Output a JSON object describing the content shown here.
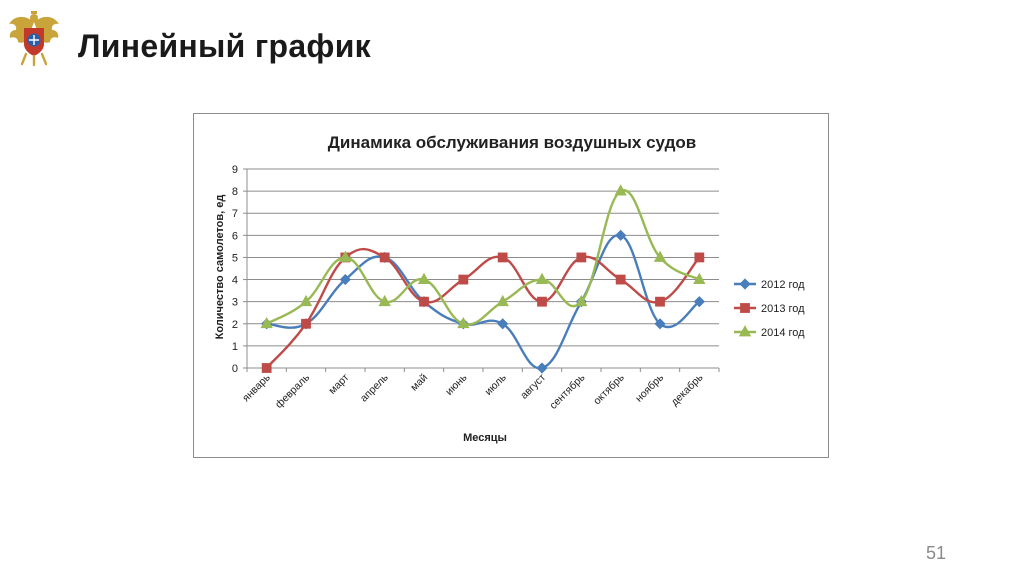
{
  "slide": {
    "title": "Линейный график",
    "page_number": "51"
  },
  "colors": {
    "2012": "#4a7ebb",
    "2013": "#be4b48",
    "2014": "#98b954",
    "grid": "#8c8c8c",
    "emblem_gold": "#c9a43a",
    "emblem_red": "#c0392b",
    "emblem_blue": "#2a5fa8"
  },
  "chart_data": {
    "type": "line",
    "title": "Динамика обслуживания воздушных судов",
    "xlabel": "Месяцы",
    "ylabel": "Количество самолетов, ед",
    "ylim": [
      0,
      9
    ],
    "yticks": [
      "0",
      "1",
      "2",
      "3",
      "4",
      "5",
      "6",
      "7",
      "8",
      "9"
    ],
    "grid": true,
    "legend_position": "right",
    "smoothed": true,
    "categories": [
      "январь",
      "февраль",
      "март",
      "апрель",
      "май",
      "июнь",
      "июль",
      "август",
      "сентябрь",
      "октябрь",
      "ноябрь",
      "декабрь"
    ],
    "series": [
      {
        "name": "2012 год",
        "marker": "diamond",
        "color": "#4a7ebb",
        "values": [
          2,
          2,
          4,
          5,
          3,
          2,
          2,
          0,
          3,
          6,
          2,
          3
        ]
      },
      {
        "name": "2013 год",
        "marker": "square",
        "color": "#be4b48",
        "values": [
          0,
          2,
          5,
          5,
          3,
          4,
          5,
          3,
          5,
          4,
          3,
          5
        ]
      },
      {
        "name": "2014 год",
        "marker": "triangle",
        "color": "#98b954",
        "values": [
          2,
          3,
          5,
          3,
          4,
          2,
          3,
          4,
          3,
          8,
          5,
          4
        ]
      }
    ]
  }
}
